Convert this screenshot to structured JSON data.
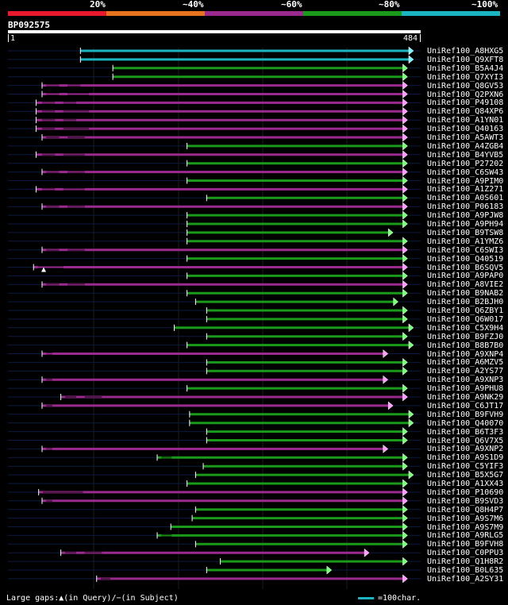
{
  "legend": {
    "labels": [
      "20%",
      "~40%",
      "~60%",
      "~80%",
      "~100%"
    ],
    "colors": [
      "#e8192c",
      "#e8731e",
      "#9b2a8f",
      "#1a9a1a",
      "#1ab5c0"
    ]
  },
  "query": {
    "id": "BP092575",
    "start": "1",
    "end": "484",
    "length": 484
  },
  "hit_colors": {
    "cyan": "#1ab5c0",
    "green": "#1a9a1a",
    "purple": "#9b2a8f",
    "arrow_green": "#7dff7d"
  },
  "hits": [
    {
      "label": "UniRef100_A8HXG5",
      "start": 85,
      "end": 470,
      "color": "cyan",
      "gaps": []
    },
    {
      "label": "UniRef100_Q9XFT8",
      "start": 85,
      "end": 470,
      "color": "cyan",
      "gaps": []
    },
    {
      "label": "UniRef100_B5A4J4",
      "start": 123,
      "end": 463,
      "color": "green",
      "gaps": []
    },
    {
      "label": "UniRef100_Q7XYI3",
      "start": 123,
      "end": 463,
      "color": "green",
      "gaps": []
    },
    {
      "label": "UniRef100_Q8GV53",
      "start": 40,
      "end": 463,
      "color": "purple",
      "gaps": [
        [
          45,
          60
        ],
        [
          70,
          85
        ]
      ]
    },
    {
      "label": "UniRef100_Q2PXN6",
      "start": 40,
      "end": 463,
      "color": "purple",
      "gaps": [
        [
          45,
          60
        ],
        [
          70,
          95
        ]
      ]
    },
    {
      "label": "UniRef100_P49108",
      "start": 33,
      "end": 463,
      "color": "purple",
      "gaps": [
        [
          40,
          55
        ],
        [
          65,
          80
        ]
      ]
    },
    {
      "label": "UniRef100_Q84XP6",
      "start": 33,
      "end": 463,
      "color": "purple",
      "gaps": [
        [
          40,
          55
        ],
        [
          65,
          95
        ]
      ]
    },
    {
      "label": "UniRef100_A1YN01",
      "start": 33,
      "end": 463,
      "color": "purple",
      "gaps": [
        [
          40,
          55
        ],
        [
          65,
          80
        ]
      ]
    },
    {
      "label": "UniRef100_Q40163",
      "start": 33,
      "end": 463,
      "color": "purple",
      "gaps": [
        [
          40,
          55
        ],
        [
          65,
          95
        ]
      ]
    },
    {
      "label": "UniRef100_A5AWT3",
      "start": 40,
      "end": 463,
      "color": "purple",
      "gaps": [
        [
          45,
          60
        ],
        [
          70,
          90
        ]
      ]
    },
    {
      "label": "UniRef100_A4ZGB4",
      "start": 210,
      "end": 463,
      "color": "green",
      "gaps": []
    },
    {
      "label": "UniRef100_B4YVB5",
      "start": 33,
      "end": 463,
      "color": "purple",
      "gaps": [
        [
          40,
          55
        ],
        [
          65,
          90
        ]
      ]
    },
    {
      "label": "UniRef100_P27202",
      "start": 210,
      "end": 463,
      "color": "green",
      "gaps": []
    },
    {
      "label": "UniRef100_C6SW43",
      "start": 40,
      "end": 463,
      "color": "purple",
      "gaps": [
        [
          45,
          60
        ],
        [
          70,
          90
        ]
      ]
    },
    {
      "label": "UniRef100_A9PIM0",
      "start": 210,
      "end": 463,
      "color": "green",
      "gaps": []
    },
    {
      "label": "UniRef100_A1Z271",
      "start": 33,
      "end": 463,
      "color": "purple",
      "gaps": [
        [
          40,
          55
        ],
        [
          65,
          90
        ]
      ]
    },
    {
      "label": "UniRef100_A0S601",
      "start": 233,
      "end": 463,
      "color": "green",
      "gaps": []
    },
    {
      "label": "UniRef100_P06183",
      "start": 40,
      "end": 463,
      "color": "purple",
      "gaps": [
        [
          45,
          60
        ],
        [
          70,
          90
        ]
      ]
    },
    {
      "label": "UniRef100_A9PJW8",
      "start": 210,
      "end": 463,
      "color": "green",
      "gaps": []
    },
    {
      "label": "UniRef100_A9PH94",
      "start": 210,
      "end": 463,
      "color": "green",
      "gaps": []
    },
    {
      "label": "UniRef100_B9TSW8",
      "start": 210,
      "end": 446,
      "color": "green",
      "gaps": []
    },
    {
      "label": "UniRef100_A1YMZ6",
      "start": 210,
      "end": 463,
      "color": "green",
      "gaps": []
    },
    {
      "label": "UniRef100_C6SWI3",
      "start": 40,
      "end": 463,
      "color": "purple",
      "gaps": [
        [
          45,
          60
        ],
        [
          70,
          90
        ]
      ]
    },
    {
      "label": "UniRef100_Q40519",
      "start": 210,
      "end": 463,
      "color": "green",
      "gaps": []
    },
    {
      "label": "UniRef100_B6SQV5",
      "start": 30,
      "end": 463,
      "color": "purple",
      "gaps": [
        [
          35,
          65
        ]
      ]
    },
    {
      "label": "UniRef100_A9PAP0",
      "start": 210,
      "end": 463,
      "color": "green",
      "gaps": []
    },
    {
      "label": "UniRef100_A8VIE2",
      "start": 40,
      "end": 463,
      "color": "purple",
      "gaps": [
        [
          45,
          60
        ],
        [
          70,
          90
        ]
      ]
    },
    {
      "label": "UniRef100_B9NAB2",
      "start": 210,
      "end": 463,
      "color": "green",
      "gaps": []
    },
    {
      "label": "UniRef100_B2BJH0",
      "start": 220,
      "end": 452,
      "color": "green",
      "gaps": []
    },
    {
      "label": "UniRef100_Q6ZBY1",
      "start": 233,
      "end": 463,
      "color": "green",
      "gaps": []
    },
    {
      "label": "UniRef100_Q6W017",
      "start": 233,
      "end": 463,
      "color": "green",
      "gaps": []
    },
    {
      "label": "UniRef100_C5X9H4",
      "start": 195,
      "end": 470,
      "color": "green",
      "gaps": []
    },
    {
      "label": "UniRef100_B9FZJ0",
      "start": 233,
      "end": 463,
      "color": "green",
      "gaps": []
    },
    {
      "label": "UniRef100_B8B7B0",
      "start": 210,
      "end": 470,
      "color": "green",
      "gaps": []
    },
    {
      "label": "UniRef100_A9XNP4",
      "start": 40,
      "end": 440,
      "color": "purple",
      "gaps": [
        [
          45,
          52
        ]
      ]
    },
    {
      "label": "UniRef100_A6MZV5",
      "start": 233,
      "end": 463,
      "color": "green",
      "gaps": []
    },
    {
      "label": "UniRef100_A2YS77",
      "start": 233,
      "end": 463,
      "color": "green",
      "gaps": []
    },
    {
      "label": "UniRef100_A9XNP3",
      "start": 40,
      "end": 440,
      "color": "purple",
      "gaps": [
        [
          45,
          52
        ]
      ]
    },
    {
      "label": "UniRef100_A9PHU8",
      "start": 210,
      "end": 463,
      "color": "green",
      "gaps": []
    },
    {
      "label": "UniRef100_A9NK29",
      "start": 62,
      "end": 463,
      "color": "purple",
      "gaps": [
        [
          67,
          80
        ],
        [
          90,
          110
        ]
      ]
    },
    {
      "label": "UniRef100_C6JT17",
      "start": 40,
      "end": 446,
      "color": "purple",
      "gaps": [
        [
          45,
          52
        ]
      ]
    },
    {
      "label": "UniRef100_B9FVH9",
      "start": 213,
      "end": 470,
      "color": "green",
      "gaps": []
    },
    {
      "label": "UniRef100_Q40070",
      "start": 213,
      "end": 470,
      "color": "green",
      "gaps": []
    },
    {
      "label": "UniRef100_B6T3F3",
      "start": 233,
      "end": 463,
      "color": "green",
      "gaps": []
    },
    {
      "label": "UniRef100_Q6V7X5",
      "start": 233,
      "end": 463,
      "color": "green",
      "gaps": []
    },
    {
      "label": "UniRef100_A9XNP2",
      "start": 40,
      "end": 440,
      "color": "purple",
      "gaps": [
        [
          45,
          52
        ]
      ]
    },
    {
      "label": "UniRef100_A9S1D9",
      "start": 175,
      "end": 463,
      "color": "green",
      "gaps": [
        [
          180,
          192
        ]
      ]
    },
    {
      "label": "UniRef100_C5YIF3",
      "start": 229,
      "end": 463,
      "color": "green",
      "gaps": []
    },
    {
      "label": "UniRef100_B5X5G7",
      "start": 220,
      "end": 470,
      "color": "green",
      "gaps": []
    },
    {
      "label": "UniRef100_A1XX43",
      "start": 210,
      "end": 463,
      "color": "green",
      "gaps": []
    },
    {
      "label": "UniRef100_P10690",
      "start": 36,
      "end": 463,
      "color": "purple",
      "gaps": [
        [
          41,
          88
        ]
      ]
    },
    {
      "label": "UniRef100_B9SVD3",
      "start": 40,
      "end": 463,
      "color": "purple",
      "gaps": [
        [
          45,
          52
        ]
      ]
    },
    {
      "label": "UniRef100_Q8H4P7",
      "start": 220,
      "end": 463,
      "color": "green",
      "gaps": []
    },
    {
      "label": "UniRef100_A9S7M6",
      "start": 216,
      "end": 463,
      "color": "green",
      "gaps": []
    },
    {
      "label": "UniRef100_A9S7M9",
      "start": 191,
      "end": 463,
      "color": "green",
      "gaps": []
    },
    {
      "label": "UniRef100_A9RLG5",
      "start": 175,
      "end": 463,
      "color": "green",
      "gaps": [
        [
          180,
          192
        ]
      ]
    },
    {
      "label": "UniRef100_B9FVH8",
      "start": 220,
      "end": 463,
      "color": "green",
      "gaps": []
    },
    {
      "label": "UniRef100_C0PPU3",
      "start": 62,
      "end": 418,
      "color": "purple",
      "gaps": [
        [
          67,
          80
        ],
        [
          90,
          110
        ]
      ]
    },
    {
      "label": "UniRef100_Q1H8R2",
      "start": 249,
      "end": 463,
      "color": "green",
      "gaps": []
    },
    {
      "label": "UniRef100_B0L635",
      "start": 233,
      "end": 374,
      "color": "green",
      "gaps": []
    },
    {
      "label": "UniRef100_A2SY31",
      "start": 104,
      "end": 463,
      "color": "purple",
      "gaps": [
        [
          109,
          120
        ]
      ]
    }
  ],
  "footer": {
    "gap_legend": "Large gaps:▲(in Query)/−(in Subject)",
    "scale_legend": "=100char."
  }
}
